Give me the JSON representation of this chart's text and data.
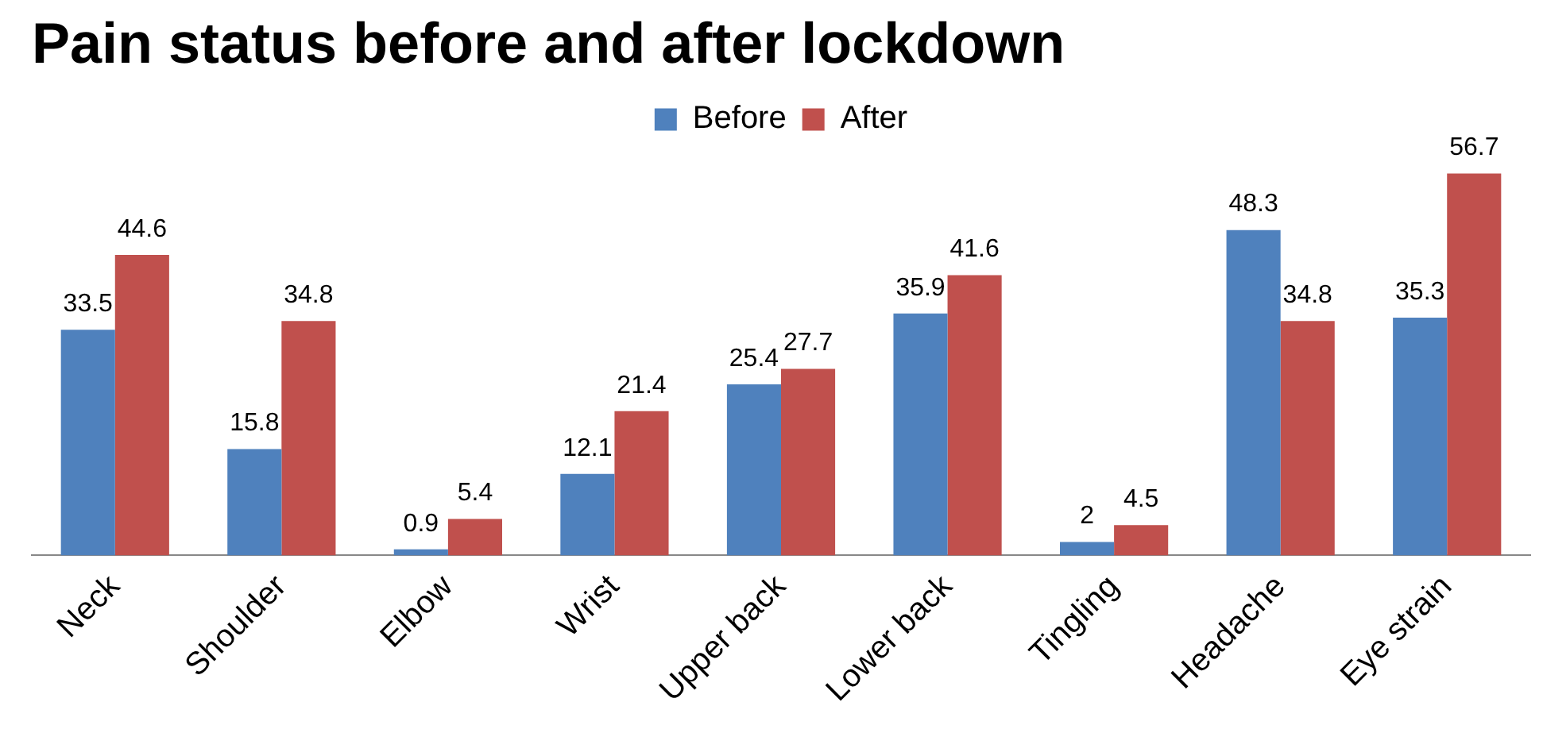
{
  "chart_data": {
    "type": "bar",
    "title": "Pain status before and after lockdown",
    "categories": [
      "Neck",
      "Shoulder",
      "Elbow",
      "Wrist",
      "Upper back",
      "Lower back",
      "Tingling",
      "Headache",
      "Eye strain"
    ],
    "series": [
      {
        "name": "Before",
        "color": "#4f81bd",
        "values": [
          33.5,
          15.8,
          0.9,
          12.1,
          25.4,
          35.9,
          2,
          48.3,
          35.3
        ]
      },
      {
        "name": "After",
        "color": "#c0504d",
        "values": [
          44.6,
          34.8,
          5.4,
          21.4,
          27.7,
          41.6,
          4.5,
          34.8,
          56.7
        ]
      }
    ],
    "data_labels": true,
    "legend": "top",
    "grid": false,
    "tick_labels": "x"
  }
}
